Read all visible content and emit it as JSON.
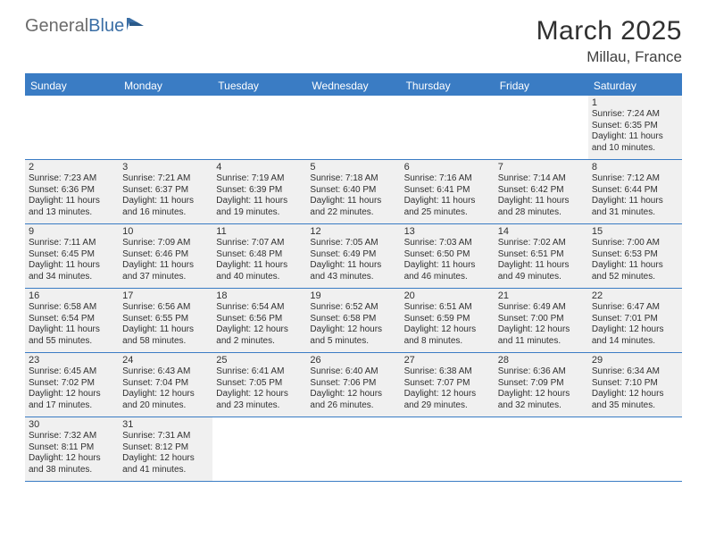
{
  "logo": {
    "general": "General",
    "blue": "Blue"
  },
  "title": "March 2025",
  "location": "Millau, France",
  "colors": {
    "header_bg": "#3a7cc4",
    "header_text": "#ffffff",
    "cell_bg": "#f0f0f0",
    "border": "#3a7cc4",
    "text": "#303030",
    "logo_general": "#6b6b6b",
    "logo_blue": "#3a6ea5"
  },
  "day_headers": [
    "Sunday",
    "Monday",
    "Tuesday",
    "Wednesday",
    "Thursday",
    "Friday",
    "Saturday"
  ],
  "weeks": [
    [
      null,
      null,
      null,
      null,
      null,
      null,
      {
        "n": "1",
        "sunrise": "Sunrise: 7:24 AM",
        "sunset": "Sunset: 6:35 PM",
        "daylight": "Daylight: 11 hours and 10 minutes."
      }
    ],
    [
      {
        "n": "2",
        "sunrise": "Sunrise: 7:23 AM",
        "sunset": "Sunset: 6:36 PM",
        "daylight": "Daylight: 11 hours and 13 minutes."
      },
      {
        "n": "3",
        "sunrise": "Sunrise: 7:21 AM",
        "sunset": "Sunset: 6:37 PM",
        "daylight": "Daylight: 11 hours and 16 minutes."
      },
      {
        "n": "4",
        "sunrise": "Sunrise: 7:19 AM",
        "sunset": "Sunset: 6:39 PM",
        "daylight": "Daylight: 11 hours and 19 minutes."
      },
      {
        "n": "5",
        "sunrise": "Sunrise: 7:18 AM",
        "sunset": "Sunset: 6:40 PM",
        "daylight": "Daylight: 11 hours and 22 minutes."
      },
      {
        "n": "6",
        "sunrise": "Sunrise: 7:16 AM",
        "sunset": "Sunset: 6:41 PM",
        "daylight": "Daylight: 11 hours and 25 minutes."
      },
      {
        "n": "7",
        "sunrise": "Sunrise: 7:14 AM",
        "sunset": "Sunset: 6:42 PM",
        "daylight": "Daylight: 11 hours and 28 minutes."
      },
      {
        "n": "8",
        "sunrise": "Sunrise: 7:12 AM",
        "sunset": "Sunset: 6:44 PM",
        "daylight": "Daylight: 11 hours and 31 minutes."
      }
    ],
    [
      {
        "n": "9",
        "sunrise": "Sunrise: 7:11 AM",
        "sunset": "Sunset: 6:45 PM",
        "daylight": "Daylight: 11 hours and 34 minutes."
      },
      {
        "n": "10",
        "sunrise": "Sunrise: 7:09 AM",
        "sunset": "Sunset: 6:46 PM",
        "daylight": "Daylight: 11 hours and 37 minutes."
      },
      {
        "n": "11",
        "sunrise": "Sunrise: 7:07 AM",
        "sunset": "Sunset: 6:48 PM",
        "daylight": "Daylight: 11 hours and 40 minutes."
      },
      {
        "n": "12",
        "sunrise": "Sunrise: 7:05 AM",
        "sunset": "Sunset: 6:49 PM",
        "daylight": "Daylight: 11 hours and 43 minutes."
      },
      {
        "n": "13",
        "sunrise": "Sunrise: 7:03 AM",
        "sunset": "Sunset: 6:50 PM",
        "daylight": "Daylight: 11 hours and 46 minutes."
      },
      {
        "n": "14",
        "sunrise": "Sunrise: 7:02 AM",
        "sunset": "Sunset: 6:51 PM",
        "daylight": "Daylight: 11 hours and 49 minutes."
      },
      {
        "n": "15",
        "sunrise": "Sunrise: 7:00 AM",
        "sunset": "Sunset: 6:53 PM",
        "daylight": "Daylight: 11 hours and 52 minutes."
      }
    ],
    [
      {
        "n": "16",
        "sunrise": "Sunrise: 6:58 AM",
        "sunset": "Sunset: 6:54 PM",
        "daylight": "Daylight: 11 hours and 55 minutes."
      },
      {
        "n": "17",
        "sunrise": "Sunrise: 6:56 AM",
        "sunset": "Sunset: 6:55 PM",
        "daylight": "Daylight: 11 hours and 58 minutes."
      },
      {
        "n": "18",
        "sunrise": "Sunrise: 6:54 AM",
        "sunset": "Sunset: 6:56 PM",
        "daylight": "Daylight: 12 hours and 2 minutes."
      },
      {
        "n": "19",
        "sunrise": "Sunrise: 6:52 AM",
        "sunset": "Sunset: 6:58 PM",
        "daylight": "Daylight: 12 hours and 5 minutes."
      },
      {
        "n": "20",
        "sunrise": "Sunrise: 6:51 AM",
        "sunset": "Sunset: 6:59 PM",
        "daylight": "Daylight: 12 hours and 8 minutes."
      },
      {
        "n": "21",
        "sunrise": "Sunrise: 6:49 AM",
        "sunset": "Sunset: 7:00 PM",
        "daylight": "Daylight: 12 hours and 11 minutes."
      },
      {
        "n": "22",
        "sunrise": "Sunrise: 6:47 AM",
        "sunset": "Sunset: 7:01 PM",
        "daylight": "Daylight: 12 hours and 14 minutes."
      }
    ],
    [
      {
        "n": "23",
        "sunrise": "Sunrise: 6:45 AM",
        "sunset": "Sunset: 7:02 PM",
        "daylight": "Daylight: 12 hours and 17 minutes."
      },
      {
        "n": "24",
        "sunrise": "Sunrise: 6:43 AM",
        "sunset": "Sunset: 7:04 PM",
        "daylight": "Daylight: 12 hours and 20 minutes."
      },
      {
        "n": "25",
        "sunrise": "Sunrise: 6:41 AM",
        "sunset": "Sunset: 7:05 PM",
        "daylight": "Daylight: 12 hours and 23 minutes."
      },
      {
        "n": "26",
        "sunrise": "Sunrise: 6:40 AM",
        "sunset": "Sunset: 7:06 PM",
        "daylight": "Daylight: 12 hours and 26 minutes."
      },
      {
        "n": "27",
        "sunrise": "Sunrise: 6:38 AM",
        "sunset": "Sunset: 7:07 PM",
        "daylight": "Daylight: 12 hours and 29 minutes."
      },
      {
        "n": "28",
        "sunrise": "Sunrise: 6:36 AM",
        "sunset": "Sunset: 7:09 PM",
        "daylight": "Daylight: 12 hours and 32 minutes."
      },
      {
        "n": "29",
        "sunrise": "Sunrise: 6:34 AM",
        "sunset": "Sunset: 7:10 PM",
        "daylight": "Daylight: 12 hours and 35 minutes."
      }
    ],
    [
      {
        "n": "30",
        "sunrise": "Sunrise: 7:32 AM",
        "sunset": "Sunset: 8:11 PM",
        "daylight": "Daylight: 12 hours and 38 minutes."
      },
      {
        "n": "31",
        "sunrise": "Sunrise: 7:31 AM",
        "sunset": "Sunset: 8:12 PM",
        "daylight": "Daylight: 12 hours and 41 minutes."
      },
      null,
      null,
      null,
      null,
      null
    ]
  ]
}
